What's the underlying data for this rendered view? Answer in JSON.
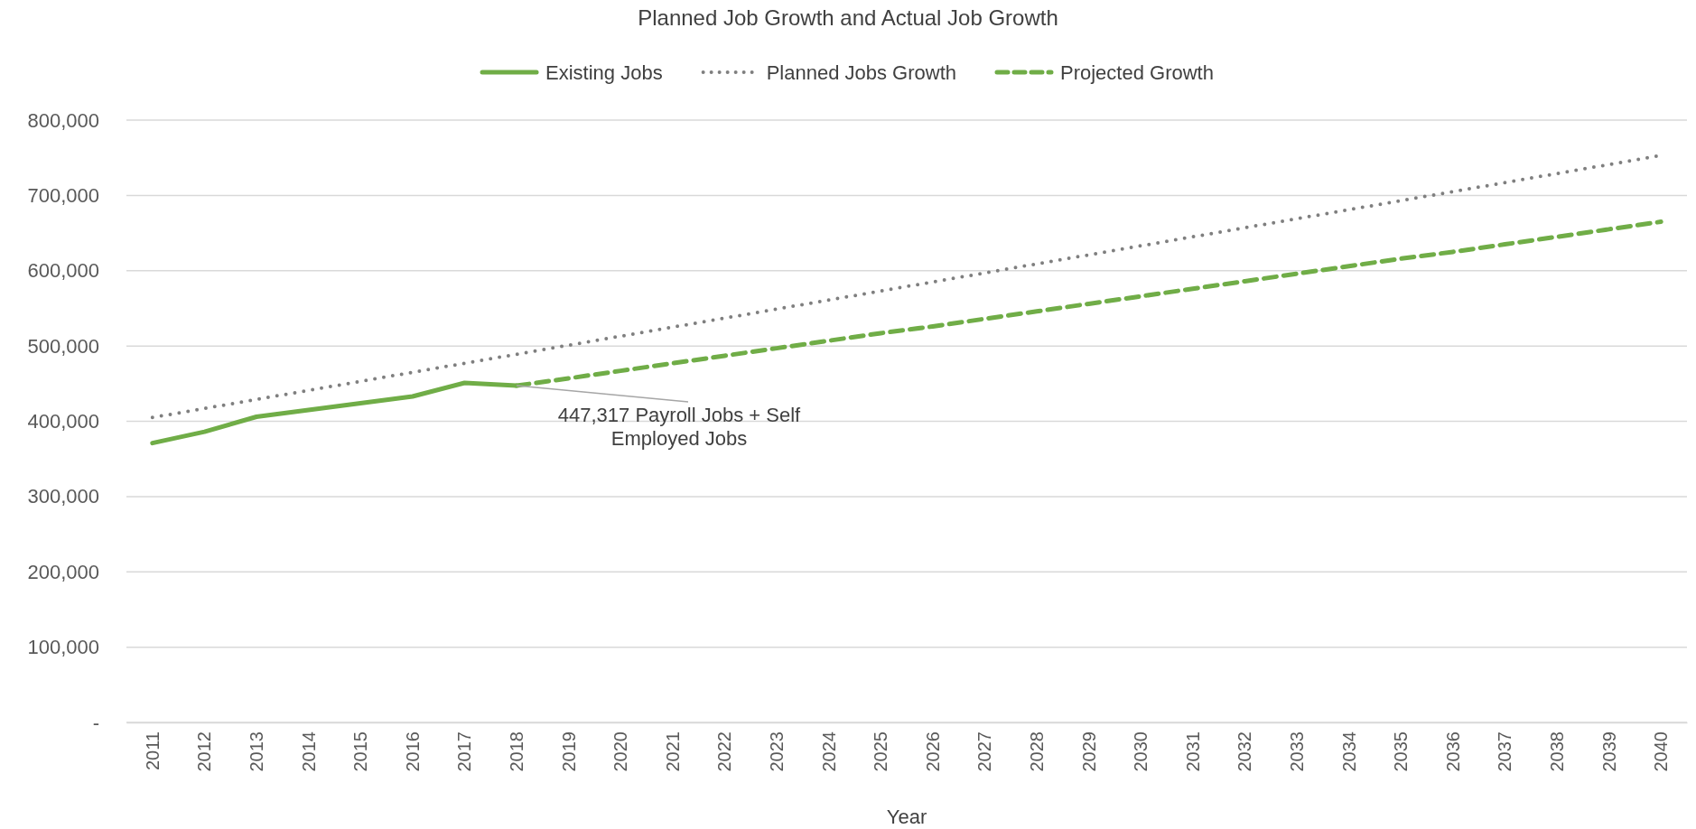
{
  "chart_data": {
    "type": "line",
    "title": "Planned Job Growth and Actual Job Growth",
    "xlabel": "Year",
    "categories": [
      "2011",
      "2012",
      "2013",
      "2014",
      "2015",
      "2016",
      "2017",
      "2018",
      "2019",
      "2020",
      "2021",
      "2022",
      "2023",
      "2024",
      "2025",
      "2026",
      "2027",
      "2028",
      "2029",
      "2030",
      "2031",
      "2032",
      "2033",
      "2034",
      "2035",
      "2036",
      "2037",
      "2038",
      "2039",
      "2040"
    ],
    "series": [
      {
        "name": "Existing Jobs",
        "color": "#70ad47",
        "line_style": "solid",
        "values": [
          371000,
          386000,
          406000,
          415000,
          424000,
          433000,
          451000,
          447317,
          null,
          null,
          null,
          null,
          null,
          null,
          null,
          null,
          null,
          null,
          null,
          null,
          null,
          null,
          null,
          null,
          null,
          null,
          null,
          null,
          null,
          null
        ]
      },
      {
        "name": "Planned Jobs Growth",
        "color": "#7f7f7f",
        "line_style": "dotted",
        "values": [
          405000,
          417000,
          429000,
          441000,
          453000,
          465000,
          477000,
          489000,
          501000,
          513000,
          525000,
          537000,
          549000,
          561000,
          573000,
          585000,
          597000,
          609000,
          621000,
          633000,
          645000,
          657000,
          669000,
          681000,
          693000,
          705000,
          717000,
          729000,
          741000,
          753000
        ]
      },
      {
        "name": "Projected Growth",
        "color": "#70ad47",
        "line_style": "dashed",
        "values": [
          null,
          null,
          null,
          null,
          null,
          null,
          null,
          447317,
          457000,
          467000,
          477000,
          487000,
          497000,
          507000,
          517000,
          526000,
          536000,
          546000,
          556000,
          566000,
          576000,
          586000,
          596000,
          606000,
          616000,
          625000,
          635000,
          645000,
          655000,
          665000
        ]
      }
    ],
    "ylim": [
      0,
      800000
    ],
    "yticks": [
      {
        "value": 0,
        "label": "-"
      },
      {
        "value": 100000,
        "label": "100,000"
      },
      {
        "value": 200000,
        "label": "200,000"
      },
      {
        "value": 300000,
        "label": "300,000"
      },
      {
        "value": 400000,
        "label": "400,000"
      },
      {
        "value": 500000,
        "label": "500,000"
      },
      {
        "value": 600000,
        "label": "600,000"
      },
      {
        "value": 700000,
        "label": "700,000"
      },
      {
        "value": 800000,
        "label": "800,000"
      }
    ],
    "grid": "y",
    "legend": "top",
    "marker": "none",
    "annotations": [
      {
        "text": "447,317 Payroll Jobs + Self Employed Jobs",
        "x": "2018",
        "y": 447317
      }
    ]
  }
}
